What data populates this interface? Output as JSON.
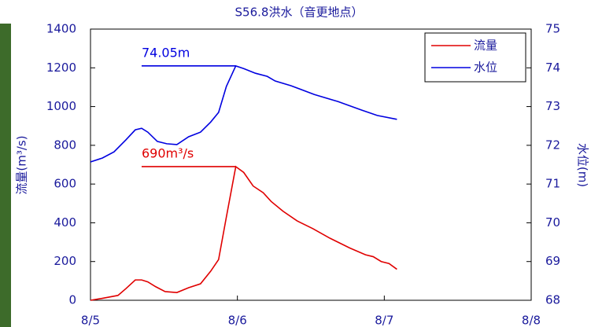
{
  "chart_data": {
    "type": "line",
    "title": "S56.8洪水（音更地点）",
    "y_label": "流量(m³/s)",
    "y2_label": "水位(m)",
    "xlim": [
      0,
      3
    ],
    "xticks": [
      {
        "value": 0,
        "label": "8/5"
      },
      {
        "value": 1,
        "label": "8/6"
      },
      {
        "value": 2,
        "label": "8/7"
      },
      {
        "value": 3,
        "label": "8/8"
      }
    ],
    "ylim": [
      0,
      1400
    ],
    "yticks": [
      0,
      200,
      400,
      600,
      800,
      1000,
      1200,
      1400
    ],
    "y2lim": [
      68,
      75
    ],
    "y2ticks": [
      68,
      69,
      70,
      71,
      72,
      73,
      74,
      75
    ],
    "legend": "upper right",
    "series": [
      {
        "name": "流量",
        "color": "#e00000",
        "axis": "y",
        "x": [
          0,
          0.08,
          0.187,
          0.241,
          0.305,
          0.348,
          0.39,
          0.444,
          0.508,
          0.588,
          0.668,
          0.749,
          0.818,
          0.872,
          0.925,
          0.989,
          1.043,
          1.107,
          1.176,
          1.23,
          1.31,
          1.406,
          1.513,
          1.631,
          1.765,
          1.872,
          1.925,
          1.979,
          2.032,
          2.086
        ],
        "values": [
          0,
          10,
          25,
          60,
          105,
          105,
          95,
          70,
          45,
          40,
          65,
          85,
          150,
          210,
          430,
          690,
          660,
          590,
          555,
          510,
          460,
          410,
          370,
          320,
          270,
          235,
          225,
          200,
          190,
          160
        ]
      },
      {
        "name": "水位",
        "color": "#0000e0",
        "axis": "y2",
        "x": [
          0,
          0.08,
          0.16,
          0.241,
          0.305,
          0.348,
          0.39,
          0.455,
          0.519,
          0.588,
          0.668,
          0.749,
          0.818,
          0.872,
          0.925,
          0.989,
          1.043,
          1.123,
          1.203,
          1.257,
          1.364,
          1.524,
          1.684,
          1.845,
          1.952,
          2.086
        ],
        "values": [
          71.57,
          71.67,
          71.83,
          72.14,
          72.4,
          72.44,
          72.34,
          72.1,
          72.04,
          72.02,
          72.22,
          72.34,
          72.6,
          72.85,
          73.52,
          74.05,
          73.98,
          73.86,
          73.78,
          73.66,
          73.54,
          73.31,
          73.13,
          72.91,
          72.77,
          72.67
        ]
      }
    ],
    "annotations": [
      {
        "text": "74.05m",
        "value": 74.05,
        "axis": "y2",
        "color": "#0000e0",
        "x": [
          0.348,
          0.989
        ]
      },
      {
        "text": "690m³/s",
        "value": 690,
        "axis": "y",
        "color": "#e00000",
        "x": [
          0.348,
          0.989
        ]
      }
    ]
  }
}
